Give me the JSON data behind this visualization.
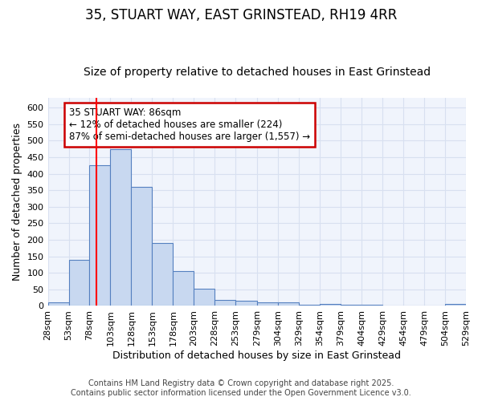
{
  "title_line1": "35, STUART WAY, EAST GRINSTEAD, RH19 4RR",
  "title_line2": "Size of property relative to detached houses in East Grinstead",
  "xlabel": "Distribution of detached houses by size in East Grinstead",
  "ylabel": "Number of detached properties",
  "bar_values": [
    10,
    140,
    425,
    475,
    360,
    190,
    105,
    53,
    17,
    15,
    12,
    10,
    3,
    5,
    3,
    3,
    0,
    0,
    0,
    5
  ],
  "bin_edges": [
    28,
    53,
    78,
    103,
    128,
    153,
    178,
    203,
    228,
    253,
    279,
    304,
    329,
    354,
    379,
    404,
    429,
    454,
    479,
    504,
    529
  ],
  "bin_labels": [
    "28sqm",
    "53sqm",
    "78sqm",
    "103sqm",
    "128sqm",
    "153sqm",
    "178sqm",
    "203sqm",
    "228sqm",
    "253sqm",
    "279sqm",
    "304sqm",
    "329sqm",
    "354sqm",
    "379sqm",
    "404sqm",
    "429sqm",
    "454sqm",
    "479sqm",
    "504sqm",
    "529sqm"
  ],
  "bar_color": "#c8d8f0",
  "bar_edge_color": "#5580c0",
  "plot_bg_color": "#f0f4fc",
  "fig_bg_color": "#ffffff",
  "grid_color": "#d8e0f0",
  "red_line_x": 86,
  "annotation_text": "35 STUART WAY: 86sqm\n← 12% of detached houses are smaller (224)\n87% of semi-detached houses are larger (1,557) →",
  "annotation_box_color": "#ffffff",
  "annotation_box_edge_color": "#cc0000",
  "ylim_max": 630,
  "yticks": [
    0,
    50,
    100,
    150,
    200,
    250,
    300,
    350,
    400,
    450,
    500,
    550,
    600
  ],
  "footer_text": "Contains HM Land Registry data © Crown copyright and database right 2025.\nContains public sector information licensed under the Open Government Licence v3.0.",
  "title_fontsize": 12,
  "subtitle_fontsize": 10,
  "axis_label_fontsize": 9,
  "tick_fontsize": 8,
  "annotation_fontsize": 8.5,
  "footer_fontsize": 7
}
